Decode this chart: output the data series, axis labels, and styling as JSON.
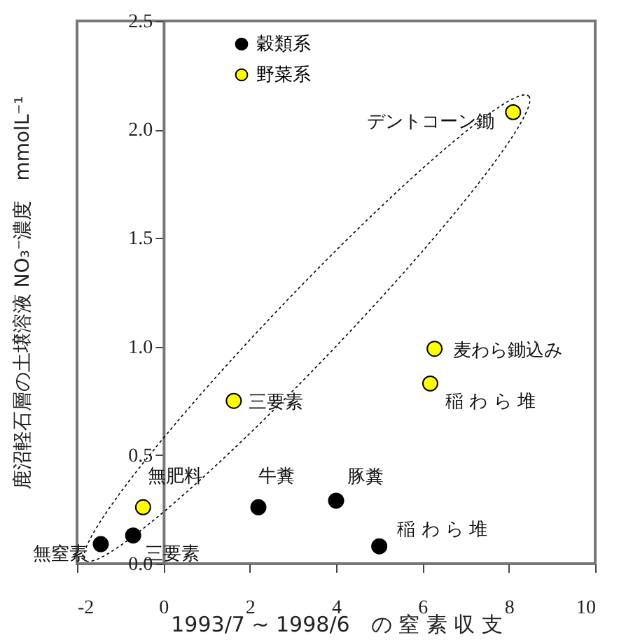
{
  "chart_data": {
    "type": "scatter",
    "xlabel": "1993/7 ~ 1998/6　の 窒 素 収 支",
    "ylabel": "鹿沼軽石層の土壌溶液 NO₃⁻濃度　mmolL⁻¹",
    "xlim": [
      -2,
      10
    ],
    "xticks": [
      -2,
      0,
      2,
      4,
      6,
      8,
      10
    ],
    "ylim": [
      0,
      2.5
    ],
    "yticks": [
      {
        "value": 0,
        "label": "0.0"
      },
      {
        "value": 0.5,
        "label": "0.5"
      },
      {
        "value": 1,
        "label": "1.0"
      },
      {
        "value": 1.5,
        "label": "1.5"
      },
      {
        "value": 2,
        "label": "2.0"
      },
      2.5
    ],
    "grid": false,
    "legend": "top left",
    "marker": "circle",
    "series": [
      {
        "name": "穀類系",
        "color": "#000000",
        "x": [
          -1.45,
          -0.7,
          2.2,
          4.0,
          5.0
        ],
        "values": [
          0.09,
          0.13,
          0.26,
          0.29,
          0.08
        ]
      },
      {
        "name": "野菜系",
        "color": "#ffff00",
        "x": [
          -0.47,
          1.63,
          6.28,
          6.18,
          8.1
        ],
        "values": [
          0.26,
          0.75,
          0.99,
          0.83,
          2.08
        ]
      }
    ],
    "annotations": [
      {
        "text": "無窒素",
        "x": -1.45,
        "y": 0.09
      },
      {
        "text": "三要素",
        "x": -0.7,
        "y": 0.13
      },
      {
        "text": "無肥料",
        "x": -0.47,
        "y": 0.26
      },
      {
        "text": "牛糞",
        "x": 2.2,
        "y": 0.26
      },
      {
        "text": "豚糞",
        "x": 4.0,
        "y": 0.29
      },
      {
        "text": "稲 わ ら 堆",
        "x": 5.0,
        "y": 0.08
      },
      {
        "text": "三要素",
        "x": 1.63,
        "y": 0.75
      },
      {
        "text": "麦わら鋤込み",
        "x": 6.28,
        "y": 0.99
      },
      {
        "text": "稲 わ ら 堆",
        "x": 6.18,
        "y": 0.83
      },
      {
        "text": "デントコーン鋤",
        "x": 8.1,
        "y": 2.08
      }
    ]
  }
}
